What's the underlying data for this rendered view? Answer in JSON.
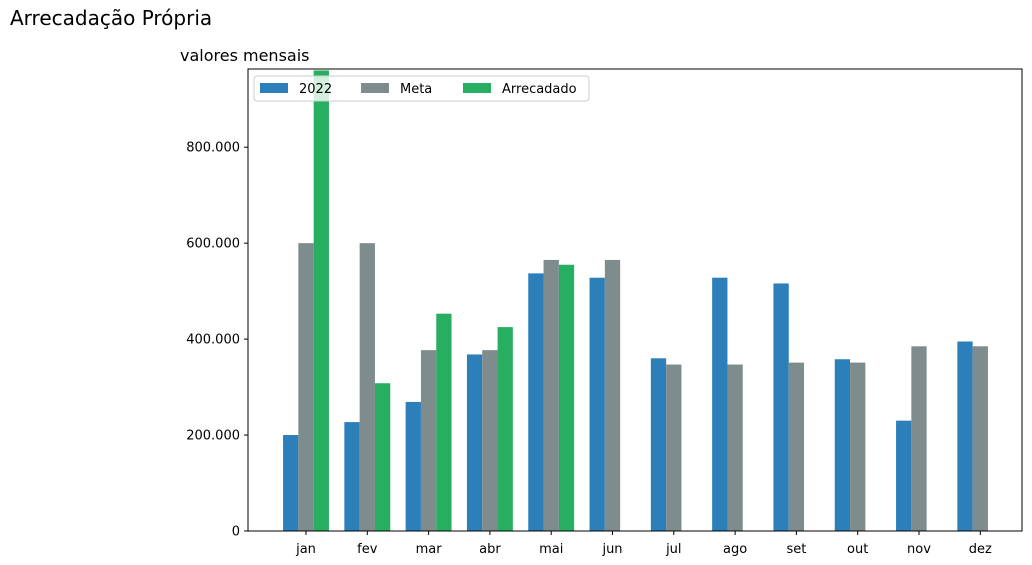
{
  "header": {
    "title": "Arrecadação Própria",
    "subtitle": "valores mensais"
  },
  "chart_data": {
    "type": "bar",
    "categories": [
      "jan",
      "fev",
      "mar",
      "abr",
      "mai",
      "jun",
      "jul",
      "ago",
      "set",
      "out",
      "nov",
      "dez"
    ],
    "series": [
      {
        "name": "2022",
        "color": "#2c7fb8",
        "values": [
          200000,
          227000,
          269000,
          368000,
          537000,
          528000,
          360000,
          528000,
          516000,
          358000,
          230000,
          395000
        ]
      },
      {
        "name": "Meta",
        "color": "#7f8c8d",
        "values": [
          600000,
          600000,
          377000,
          377000,
          565000,
          565000,
          347000,
          347000,
          351000,
          351000,
          385000,
          385000
        ]
      },
      {
        "name": "Arrecadado",
        "color": "#27ae60",
        "values": [
          960000,
          308000,
          453000,
          425000,
          555000,
          null,
          null,
          null,
          null,
          null,
          null,
          null
        ]
      }
    ],
    "ylim": [
      0,
      963000
    ],
    "yticks": [
      0,
      200000,
      400000,
      600000,
      800000
    ],
    "ytick_labels": [
      "0",
      "200.000",
      "400.000",
      "600.000",
      "800.000"
    ],
    "xlabel": "",
    "ylabel": "",
    "legend": {
      "placement": "top-left",
      "columns": 3
    },
    "grid": false
  }
}
